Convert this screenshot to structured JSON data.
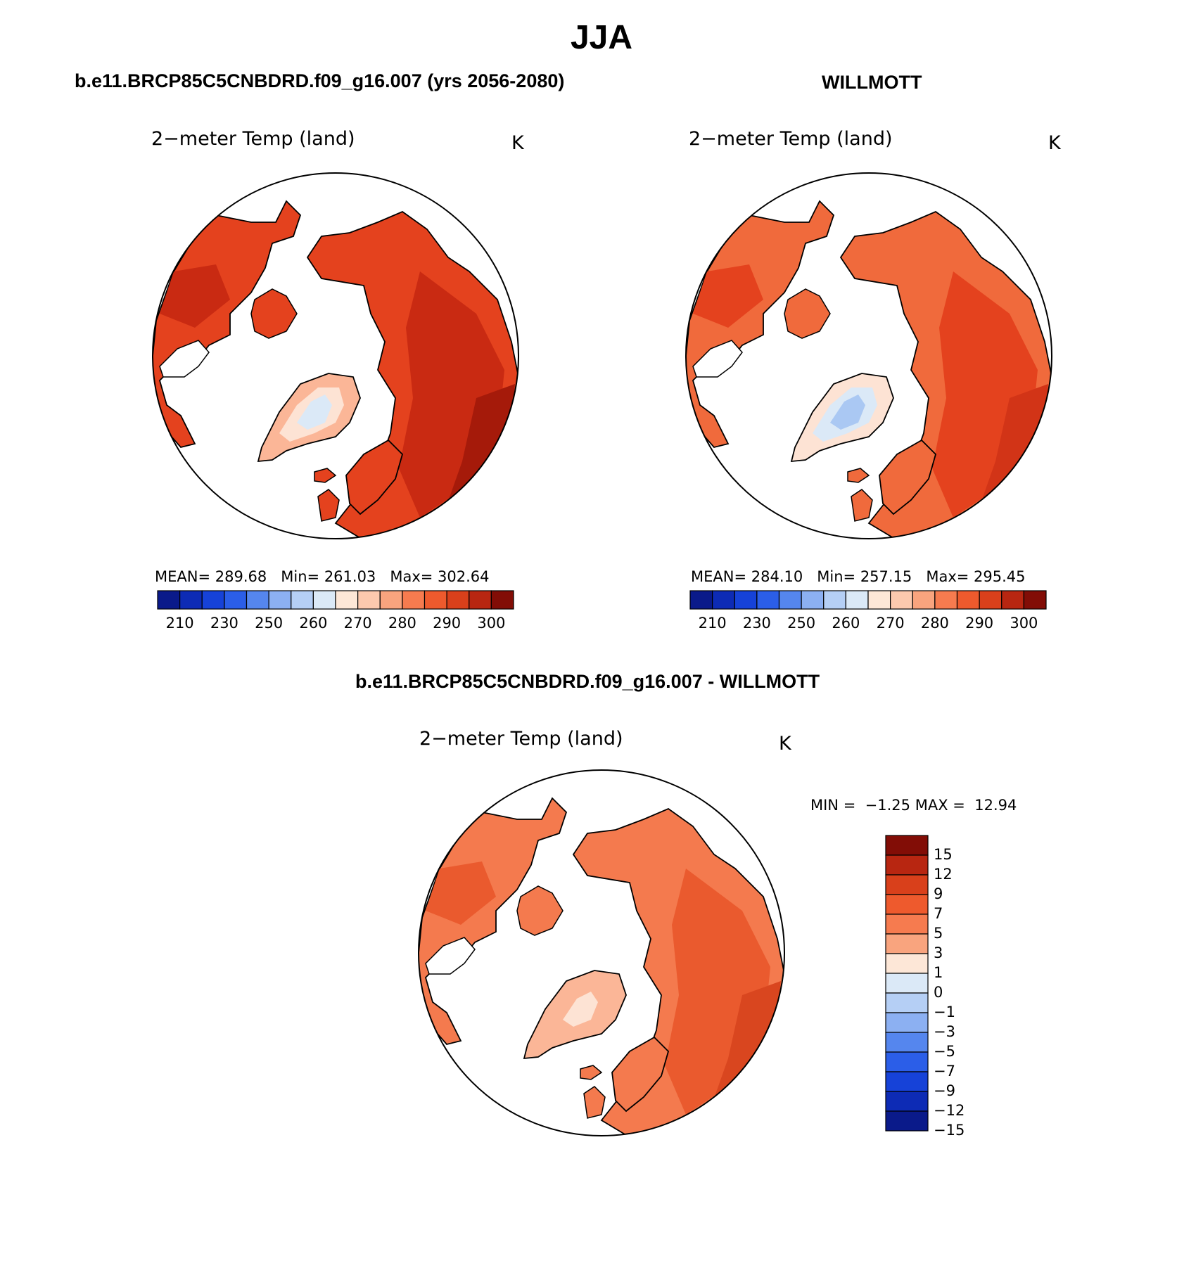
{
  "figure": {
    "title": "JJA"
  },
  "panels": [
    {
      "case_title": "b.e11.BRCP85C5CNBDRD.f09_g16.007 (yrs 2056-2080)",
      "variable": "2−meter Temp (land)",
      "units": "K",
      "stats": {
        "mean_label": "MEAN=",
        "mean": "289.68",
        "min_label": "Min=",
        "min": "261.03",
        "max_label": "Max=",
        "max": "302.64"
      },
      "field_colors": {
        "ocean": "#ffffff",
        "land": "#e4421e",
        "land_warm": "#c92a12",
        "land_hot": "#a51a0a",
        "greenland_edge": "#fbb697",
        "greenland_mid": "#fde3d4",
        "greenland_core": "#dbe9f7"
      }
    },
    {
      "case_title": "WILLMOTT",
      "variable": "2−meter Temp (land)",
      "units": "K",
      "stats": {
        "mean_label": "MEAN=",
        "mean": "284.10",
        "min_label": "Min=",
        "min": "257.15",
        "max_label": "Max=",
        "max": "295.45"
      },
      "field_colors": {
        "ocean": "#ffffff",
        "land": "#f06a3c",
        "land_warm": "#e4421e",
        "land_hot": "#d23417",
        "greenland_edge": "#fde3d4",
        "greenland_mid": "#dbe9f7",
        "greenland_core": "#aac8f3"
      }
    },
    {
      "case_title": "b.e11.BRCP85C5CNBDRD.f09_g16.007 - WILLMOTT",
      "variable": "2−meter Temp (land)",
      "units": "K",
      "stats": {
        "min_label": "MIN =",
        "min": "−1.25",
        "max_label": "MAX =",
        "max": "12.94"
      },
      "field_colors": {
        "ocean": "#ffffff",
        "land": "#f47a4e",
        "land_warm": "#ea5a2e",
        "land_hot": "#d9461f",
        "greenland_edge": "#fbb697",
        "greenland_mid": "#fbb697",
        "greenland_core": "#fde3d4"
      }
    }
  ],
  "colorbar_abs": {
    "colors": [
      "#0a1a8a",
      "#0d2bb5",
      "#1642d8",
      "#2b5ee8",
      "#5586ee",
      "#8cb0f2",
      "#b5cff5",
      "#dbe9f7",
      "#fde7d7",
      "#fcc9ae",
      "#f9a47e",
      "#f67b4f",
      "#ee5a2d",
      "#d9401b",
      "#b82611",
      "#820d06"
    ],
    "labels": [
      "210",
      "230",
      "250",
      "260",
      "270",
      "280",
      "290",
      "300"
    ]
  },
  "colorbar_diff": {
    "colors": [
      "#820d06",
      "#b82611",
      "#d9401b",
      "#ee5a2d",
      "#f67b4f",
      "#f9a47e",
      "#fde7d7",
      "#dbe9f7",
      "#b5cff5",
      "#8cb0f2",
      "#5586ee",
      "#2b5ee8",
      "#1642d8",
      "#0d2bb5",
      "#0a1a8a"
    ],
    "labels": [
      "15",
      "12",
      "9",
      "7",
      "5",
      "3",
      "1",
      "0",
      "−1",
      "−3",
      "−5",
      "−7",
      "−9",
      "−12",
      "−15"
    ]
  }
}
